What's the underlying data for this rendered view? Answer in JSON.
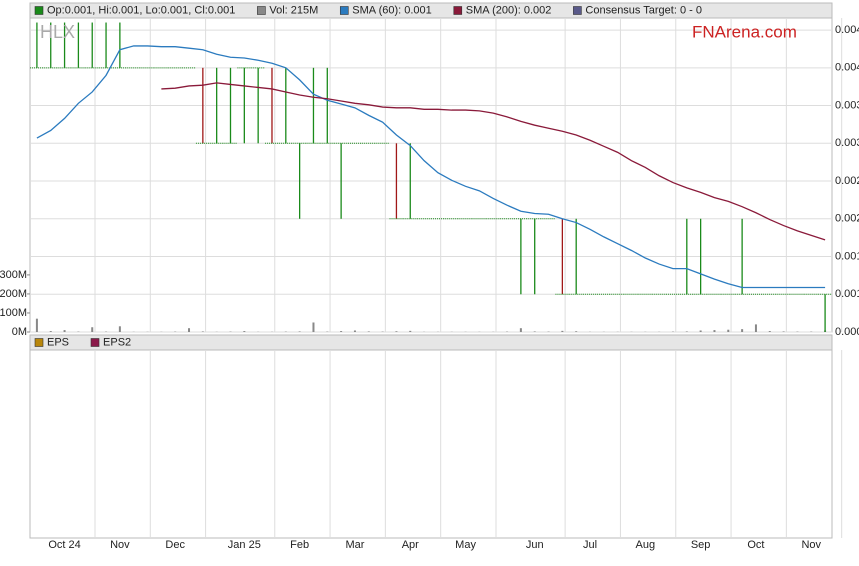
{
  "chart_data": [
    {
      "type": "hlc",
      "title": "HLX",
      "watermark": "FNArena.com",
      "categories": [
        null,
        null,
        "Oct 24",
        null,
        null,
        null,
        "Nov",
        null,
        null,
        null,
        "Dec",
        null,
        null,
        null,
        null,
        "Jan 25",
        null,
        null,
        null,
        "Feb",
        null,
        null,
        null,
        "Mar",
        null,
        null,
        null,
        "Apr",
        null,
        null,
        null,
        "May",
        null,
        null,
        null,
        null,
        "Jun",
        null,
        null,
        null,
        "Jul",
        null,
        null,
        null,
        "Aug",
        null,
        null,
        null,
        "Sep",
        null,
        null,
        null,
        "Oct",
        null,
        null,
        null,
        "Nov",
        null
      ],
      "price": {
        "name": "Op:0.001, Hi:0.001, Lo:0.001, Cl:0.001",
        "color": "#1a8a1a",
        "down_color": "#a01818",
        "high": [
          0.0046,
          0.0046,
          0.0046,
          0.0046,
          0.0046,
          0.0046,
          0.0046,
          0.004,
          0.004,
          0.004,
          0.004,
          0.004,
          0.004,
          0.004,
          0.004,
          0.004,
          0.004,
          0.004,
          0.004,
          0.003,
          0.004,
          0.004,
          0.003,
          0.003,
          0.003,
          0.003,
          0.003,
          0.003,
          0.002,
          0.002,
          0.002,
          0.002,
          0.002,
          0.002,
          0.002,
          0.002,
          0.002,
          0.002,
          0.002,
          0.002,
          0.001,
          0.001,
          0.001,
          0.001,
          0.001,
          0.001,
          0.001,
          0.002,
          0.002,
          0.001,
          0.001,
          0.002,
          0.001,
          0.001,
          0.001,
          0.001,
          0.001,
          0.001
        ],
        "low": [
          0.004,
          0.004,
          0.004,
          0.004,
          0.004,
          0.004,
          0.004,
          0.004,
          0.004,
          0.004,
          0.004,
          0.004,
          0.003,
          0.003,
          0.003,
          0.003,
          0.003,
          0.003,
          0.003,
          0.002,
          0.003,
          0.003,
          0.002,
          0.003,
          0.003,
          0.003,
          0.002,
          0.002,
          0.002,
          0.002,
          0.002,
          0.002,
          0.002,
          0.002,
          0.002,
          0.001,
          0.001,
          0.002,
          0.001,
          0.001,
          0.001,
          0.001,
          0.001,
          0.001,
          0.001,
          0.001,
          0.001,
          0.001,
          0.001,
          0.001,
          0.001,
          0.001,
          0.001,
          0.001,
          0.001,
          0.001,
          0.001,
          0.0005
        ],
        "close": [
          0.004,
          0.004,
          0.004,
          0.004,
          0.004,
          0.004,
          0.004,
          0.004,
          0.004,
          0.004,
          0.004,
          0.004,
          0.003,
          0.003,
          0.003,
          0.004,
          0.004,
          0.003,
          0.003,
          0.003,
          0.003,
          0.003,
          0.003,
          0.003,
          0.003,
          0.003,
          0.002,
          0.002,
          0.002,
          0.002,
          0.002,
          0.002,
          0.002,
          0.002,
          0.002,
          0.002,
          0.002,
          0.002,
          0.001,
          0.001,
          0.001,
          0.001,
          0.001,
          0.001,
          0.001,
          0.001,
          0.001,
          0.001,
          0.001,
          0.001,
          0.001,
          0.001,
          0.001,
          0.001,
          0.001,
          0.001,
          0.001,
          0.001
        ]
      },
      "volume": {
        "name": "Vol: 215M",
        "color": "#888888",
        "values": [
          70,
          5,
          10,
          2,
          25,
          2,
          30,
          1,
          1,
          1,
          2,
          20,
          3,
          1,
          2,
          5,
          1,
          1,
          2,
          3,
          50,
          2,
          5,
          8,
          3,
          2,
          4,
          6,
          1,
          1,
          1,
          1,
          1,
          1,
          2,
          20,
          3,
          2,
          6,
          4,
          1,
          1,
          1,
          1,
          1,
          1,
          2,
          3,
          8,
          10,
          12,
          15,
          40,
          5,
          3,
          2,
          2,
          8
        ],
        "ylim": [
          0,
          1650
        ],
        "yticks": [
          {
            "value": 0,
            "label": "0M"
          },
          {
            "value": 100,
            "label": "100M"
          },
          {
            "value": 200,
            "label": "200M"
          },
          {
            "value": 300,
            "label": "300M"
          }
        ]
      },
      "series": [
        {
          "name": "SMA (60): 0.001",
          "color": "#2b7bbf",
          "values": [
            0.00307,
            0.00317,
            0.00333,
            0.00353,
            0.00368,
            0.0039,
            0.00424,
            0.00429,
            0.00429,
            0.00428,
            0.00428,
            0.00426,
            0.00424,
            0.00418,
            0.00414,
            0.00413,
            0.0041,
            0.00406,
            0.004,
            0.00384,
            0.00365,
            0.00357,
            0.00352,
            0.00347,
            0.00337,
            0.00328,
            0.00311,
            0.00297,
            0.00277,
            0.00261,
            0.00251,
            0.00243,
            0.00237,
            0.00227,
            0.00218,
            0.0021,
            0.00207,
            0.00206,
            0.002,
            0.00195,
            0.00186,
            0.00176,
            0.00167,
            0.00158,
            0.00148,
            0.0014,
            0.00134,
            0.00134,
            0.00127,
            0.0012,
            0.00114,
            0.00109,
            0.00109,
            0.00109,
            0.00109,
            0.00109,
            0.00109,
            0.00109
          ]
        },
        {
          "name": "SMA (200): 0.002",
          "color": "#8a1a3a",
          "values": [
            null,
            null,
            null,
            null,
            null,
            null,
            null,
            null,
            null,
            0.00372,
            0.00373,
            0.00376,
            0.00377,
            0.0038,
            0.00378,
            0.00376,
            0.00374,
            0.00372,
            0.00368,
            0.00364,
            0.00361,
            0.00359,
            0.00356,
            0.00353,
            0.00351,
            0.00348,
            0.00347,
            0.00347,
            0.00345,
            0.00345,
            0.00344,
            0.00344,
            0.00343,
            0.0034,
            0.00335,
            0.00329,
            0.00324,
            0.0032,
            0.00316,
            0.00311,
            0.00304,
            0.00296,
            0.00288,
            0.00277,
            0.00268,
            0.00257,
            0.00248,
            0.00241,
            0.00235,
            0.00228,
            0.00223,
            0.00216,
            0.00208,
            0.00199,
            0.00191,
            0.00184,
            0.00178,
            0.00172
          ]
        }
      ],
      "consensus": {
        "name": "Consensus Target: 0 - 0",
        "color": "#5a5a8a"
      },
      "ylim": [
        0.0005,
        0.00466
      ],
      "yticks": [
        {
          "value": 0.0005,
          "label": "0.000"
        },
        {
          "value": 0.001,
          "label": "0.001"
        },
        {
          "value": 0.0015,
          "label": "0.001"
        },
        {
          "value": 0.002,
          "label": "0.002"
        },
        {
          "value": 0.0025,
          "label": "0.002"
        },
        {
          "value": 0.003,
          "label": "0.003"
        },
        {
          "value": 0.0035,
          "label": "0.003"
        },
        {
          "value": 0.004,
          "label": "0.004"
        },
        {
          "value": 0.0045,
          "label": "0.004"
        }
      ],
      "grid": true
    },
    {
      "type": "line",
      "series": [
        {
          "name": "EPS",
          "color": "#b8860b"
        },
        {
          "name": "EPS2",
          "color": "#8b1a4a"
        }
      ]
    }
  ]
}
